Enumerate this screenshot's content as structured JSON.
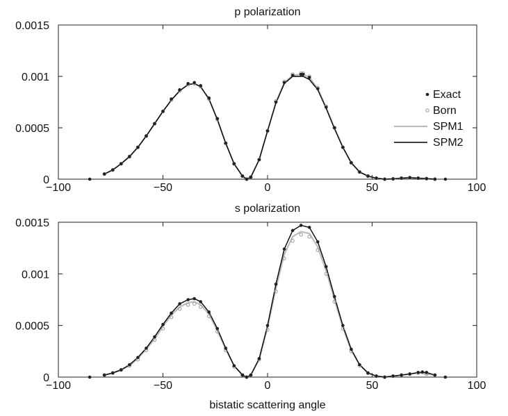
{
  "chart_data": [
    {
      "type": "line",
      "title": "p polarization",
      "xlabel": "",
      "ylabel": "",
      "xlim": [
        -100,
        100
      ],
      "ylim": [
        0,
        0.0015
      ],
      "xticks": [
        "−100",
        "−50",
        "0",
        "50",
        "100"
      ],
      "yticks": [
        "0",
        "0.0005",
        "0.001",
        "0.0015"
      ],
      "grid": false,
      "legend_position": "right",
      "legend": [
        "Exact",
        "Born",
        "SPM1",
        "SPM2"
      ],
      "series": [
        {
          "name": "Exact",
          "style": "dots",
          "color": "#222222",
          "x": [
            -85,
            -78,
            -74,
            -70,
            -66,
            -62,
            -58,
            -54,
            -50,
            -46,
            -42,
            -38,
            -35,
            -32,
            -28,
            -24,
            -20,
            -16,
            -12,
            -10,
            -8,
            -4,
            0,
            4,
            8,
            12,
            16,
            17,
            20,
            24,
            28,
            32,
            36,
            40,
            44,
            48,
            52,
            56,
            60,
            64,
            68,
            72,
            76,
            80,
            85
          ],
          "y": [
            0,
            5e-05,
            9e-05,
            0.00015,
            0.00022,
            0.00031,
            0.00042,
            0.00054,
            0.00066,
            0.00078,
            0.00087,
            0.00093,
            0.00094,
            0.00091,
            0.00079,
            0.00059,
            0.00035,
            0.00015,
            3e-05,
            0,
            2e-05,
            0.00019,
            0.00047,
            0.00075,
            0.00094,
            0.00101,
            0.00102,
            0.00102,
            0.00099,
            0.00088,
            0.0007,
            0.0005,
            0.00031,
            0.00016,
            7e-05,
            3e-05,
            1e-05,
            0,
            3e-06,
            1e-05,
            1.5e-05,
            1e-05,
            5e-06,
            0,
            0
          ]
        },
        {
          "name": "Born",
          "style": "open-circles",
          "color": "#999999",
          "x": [
            -78,
            -74,
            -70,
            -66,
            -62,
            -58,
            -54,
            -50,
            -46,
            -42,
            -38,
            -35,
            -32,
            -28,
            -24,
            -20,
            -16,
            -12,
            -10,
            -8,
            -4,
            0,
            4,
            8,
            12,
            16,
            17,
            20,
            24,
            28,
            32,
            36,
            40,
            44,
            48,
            52,
            56,
            60,
            64,
            68,
            72,
            76,
            80
          ],
          "y": [
            5e-05,
            9e-05,
            0.00015,
            0.00022,
            0.00031,
            0.00042,
            0.00054,
            0.00066,
            0.00077,
            0.00086,
            0.00092,
            0.00093,
            0.0009,
            0.00078,
            0.00058,
            0.00035,
            0.00015,
            3e-05,
            0,
            2e-05,
            0.00019,
            0.00047,
            0.00076,
            0.00095,
            0.00102,
            0.00103,
            0.00103,
            0.001,
            0.00089,
            0.00071,
            0.0005,
            0.00031,
            0.00016,
            7e-05,
            3e-05,
            1e-05,
            0,
            3e-06,
            1e-05,
            1.5e-05,
            1e-05,
            5e-06,
            0
          ]
        },
        {
          "name": "SPM1",
          "style": "line",
          "color": "#bbbbbb",
          "x": [
            -78,
            -74,
            -70,
            -66,
            -62,
            -58,
            -54,
            -50,
            -46,
            -42,
            -38,
            -35,
            -32,
            -28,
            -24,
            -20,
            -16,
            -12,
            -10,
            -8,
            -4,
            0,
            4,
            8,
            12,
            16,
            17,
            20,
            24,
            28,
            32,
            36,
            40,
            44,
            48,
            52,
            56,
            60,
            64,
            68,
            72,
            76,
            80
          ],
          "y": [
            5e-05,
            9e-05,
            0.00015,
            0.00022,
            0.00031,
            0.00042,
            0.00054,
            0.00066,
            0.00077,
            0.00086,
            0.00092,
            0.00093,
            0.0009,
            0.00078,
            0.00058,
            0.00035,
            0.00015,
            3e-05,
            0,
            2e-05,
            0.00019,
            0.00047,
            0.00075,
            0.00094,
            0.00101,
            0.00102,
            0.00102,
            0.00099,
            0.00088,
            0.0007,
            0.0005,
            0.00031,
            0.00016,
            7e-05,
            3e-05,
            1e-05,
            0,
            3e-06,
            1e-05,
            1.5e-05,
            1e-05,
            5e-06,
            0
          ]
        },
        {
          "name": "SPM2",
          "style": "line",
          "color": "#000000",
          "x": [
            -78,
            -74,
            -70,
            -66,
            -62,
            -58,
            -54,
            -50,
            -46,
            -42,
            -38,
            -35,
            -32,
            -28,
            -24,
            -20,
            -16,
            -12,
            -10,
            -8,
            -4,
            0,
            4,
            8,
            12,
            16,
            17,
            20,
            24,
            28,
            32,
            36,
            40,
            44,
            48,
            52,
            56,
            60,
            64,
            68,
            72,
            76,
            80
          ],
          "y": [
            5e-05,
            9e-05,
            0.00015,
            0.00022,
            0.00031,
            0.00042,
            0.00054,
            0.00066,
            0.00077,
            0.00086,
            0.00092,
            0.00093,
            0.0009,
            0.00078,
            0.00058,
            0.00035,
            0.00015,
            3e-05,
            0,
            2e-05,
            0.00019,
            0.00047,
            0.00074,
            0.00093,
            0.001,
            0.001,
            0.001,
            0.00097,
            0.00087,
            0.00069,
            0.00049,
            0.00031,
            0.00016,
            7e-05,
            3e-05,
            1e-05,
            0,
            3e-06,
            1e-05,
            1.5e-05,
            1e-05,
            5e-06,
            0
          ]
        }
      ]
    },
    {
      "type": "line",
      "title": "s polarization",
      "xlabel": "bistatic scattering angle",
      "ylabel": "",
      "xlim": [
        -100,
        100
      ],
      "ylim": [
        0,
        0.0015
      ],
      "xticks": [
        "−100",
        "−50",
        "0",
        "50",
        "100"
      ],
      "yticks": [
        "0",
        "0.0005",
        "0.001",
        "0.0015"
      ],
      "grid": false,
      "series": [
        {
          "name": "Exact",
          "style": "dots",
          "color": "#222222",
          "x": [
            -85,
            -78,
            -74,
            -70,
            -66,
            -62,
            -58,
            -54,
            -50,
            -46,
            -42,
            -38,
            -35,
            -32,
            -28,
            -24,
            -20,
            -16,
            -12,
            -10,
            -8,
            -4,
            0,
            4,
            8,
            12,
            16,
            20,
            24,
            28,
            32,
            36,
            40,
            44,
            48,
            52,
            56,
            60,
            64,
            68,
            72,
            74,
            76,
            80,
            85
          ],
          "y": [
            0,
            2e-05,
            4e-05,
            7e-05,
            0.00012,
            0.00019,
            0.00028,
            0.00039,
            0.00051,
            0.00062,
            0.00071,
            0.00075,
            0.00076,
            0.00073,
            0.00063,
            0.00047,
            0.00028,
            0.00011,
            2e-05,
            0,
            2e-05,
            0.00018,
            0.0005,
            0.0009,
            0.00124,
            0.00142,
            0.00147,
            0.00145,
            0.00131,
            0.00107,
            0.00078,
            0.0005,
            0.00027,
            0.00012,
            4e-05,
            1e-05,
            0,
            1e-05,
            2e-05,
            3e-05,
            4.5e-05,
            5e-05,
            4.5e-05,
            2e-05,
            0
          ]
        },
        {
          "name": "Born",
          "style": "open-circles",
          "color": "#999999",
          "x": [
            -78,
            -74,
            -70,
            -66,
            -62,
            -58,
            -54,
            -50,
            -46,
            -42,
            -38,
            -35,
            -32,
            -28,
            -24,
            -20,
            -16,
            -12,
            -10,
            -8,
            -4,
            0,
            4,
            8,
            12,
            16,
            20,
            24,
            28,
            32,
            36,
            40,
            44,
            48,
            52,
            56,
            60,
            64,
            68,
            72,
            76,
            80
          ],
          "y": [
            2e-05,
            4e-05,
            7e-05,
            0.00011,
            0.00017,
            0.00026,
            0.00036,
            0.00047,
            0.00058,
            0.00066,
            0.0007,
            0.00071,
            0.00068,
            0.00059,
            0.00044,
            0.00026,
            0.0001,
            2e-05,
            0,
            2e-05,
            0.00017,
            0.00046,
            0.00083,
            0.00115,
            0.00132,
            0.00138,
            0.00136,
            0.00123,
            0.001,
            0.00073,
            0.00047,
            0.00025,
            0.00011,
            4e-05,
            1e-05,
            0,
            1e-05,
            2e-05,
            3e-05,
            4e-05,
            3e-05,
            2e-05
          ]
        },
        {
          "name": "SPM1",
          "style": "line",
          "color": "#bbbbbb",
          "x": [
            -78,
            -74,
            -70,
            -66,
            -62,
            -58,
            -54,
            -50,
            -46,
            -42,
            -38,
            -35,
            -32,
            -28,
            -24,
            -20,
            -16,
            -12,
            -10,
            -8,
            -4,
            0,
            4,
            8,
            12,
            16,
            20,
            24,
            28,
            32,
            36,
            40,
            44,
            48,
            52,
            56,
            60,
            64,
            68,
            72,
            76,
            80
          ],
          "y": [
            2e-05,
            4e-05,
            7e-05,
            0.00011,
            0.00018,
            0.00027,
            0.00037,
            0.00049,
            0.0006,
            0.00068,
            0.00072,
            0.00073,
            0.0007,
            0.00061,
            0.00045,
            0.00027,
            0.00011,
            2e-05,
            0,
            2e-05,
            0.00017,
            0.00048,
            0.00086,
            0.00119,
            0.00136,
            0.00141,
            0.00139,
            0.00126,
            0.00103,
            0.00075,
            0.00048,
            0.00026,
            0.00012,
            4e-05,
            1e-05,
            0,
            1e-05,
            2e-05,
            3e-05,
            4e-05,
            3e-05,
            2e-05
          ]
        },
        {
          "name": "SPM2",
          "style": "line",
          "color": "#000000",
          "x": [
            -78,
            -74,
            -70,
            -66,
            -62,
            -58,
            -54,
            -50,
            -46,
            -42,
            -38,
            -35,
            -32,
            -28,
            -24,
            -20,
            -16,
            -12,
            -10,
            -8,
            -4,
            0,
            4,
            8,
            12,
            16,
            20,
            24,
            28,
            32,
            36,
            40,
            44,
            48,
            52,
            56,
            60,
            64,
            68,
            72,
            76,
            80
          ],
          "y": [
            2e-05,
            4e-05,
            7e-05,
            0.00012,
            0.00019,
            0.00028,
            0.00039,
            0.00051,
            0.00062,
            0.00071,
            0.00075,
            0.00076,
            0.00073,
            0.00063,
            0.00047,
            0.00028,
            0.00011,
            2e-05,
            0,
            2e-05,
            0.00018,
            0.0005,
            0.0009,
            0.00124,
            0.00142,
            0.00147,
            0.00145,
            0.00131,
            0.00107,
            0.00078,
            0.0005,
            0.00027,
            0.00012,
            4e-05,
            1e-05,
            0,
            1e-05,
            2e-05,
            3e-05,
            4.5e-05,
            4.5e-05,
            2e-05
          ]
        }
      ]
    }
  ]
}
